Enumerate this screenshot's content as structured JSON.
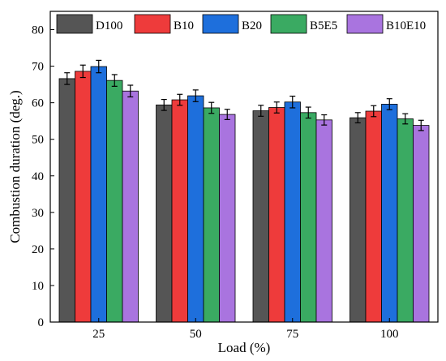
{
  "chart_data": {
    "type": "bar",
    "xlabel": "Load (%)",
    "ylabel": "Combustion duration (deg.)",
    "categories": [
      "25",
      "50",
      "75",
      "100"
    ],
    "ylim": [
      0,
      85
    ],
    "yticks": [
      0,
      10,
      20,
      30,
      40,
      50,
      60,
      70,
      80
    ],
    "grid": false,
    "legend": "top",
    "error_bars": true,
    "series": [
      {
        "name": "D100",
        "color": "#555555",
        "values": [
          66.6,
          59.4,
          57.8,
          55.9
        ],
        "errors": [
          1.6,
          1.5,
          1.5,
          1.4
        ]
      },
      {
        "name": "B10",
        "color": "#ee3b3b",
        "values": [
          68.6,
          60.8,
          58.7,
          57.7
        ],
        "errors": [
          1.7,
          1.5,
          1.5,
          1.5
        ]
      },
      {
        "name": "B20",
        "color": "#1e6fdc",
        "values": [
          69.9,
          61.9,
          60.2,
          59.6
        ],
        "errors": [
          1.7,
          1.6,
          1.6,
          1.5
        ]
      },
      {
        "name": "B5E5",
        "color": "#3aaa62",
        "values": [
          66.1,
          58.6,
          57.3,
          55.6
        ],
        "errors": [
          1.6,
          1.5,
          1.5,
          1.4
        ]
      },
      {
        "name": "B10E10",
        "color": "#a974df",
        "values": [
          63.2,
          56.8,
          55.3,
          53.8
        ],
        "errors": [
          1.6,
          1.4,
          1.4,
          1.4
        ]
      }
    ]
  }
}
